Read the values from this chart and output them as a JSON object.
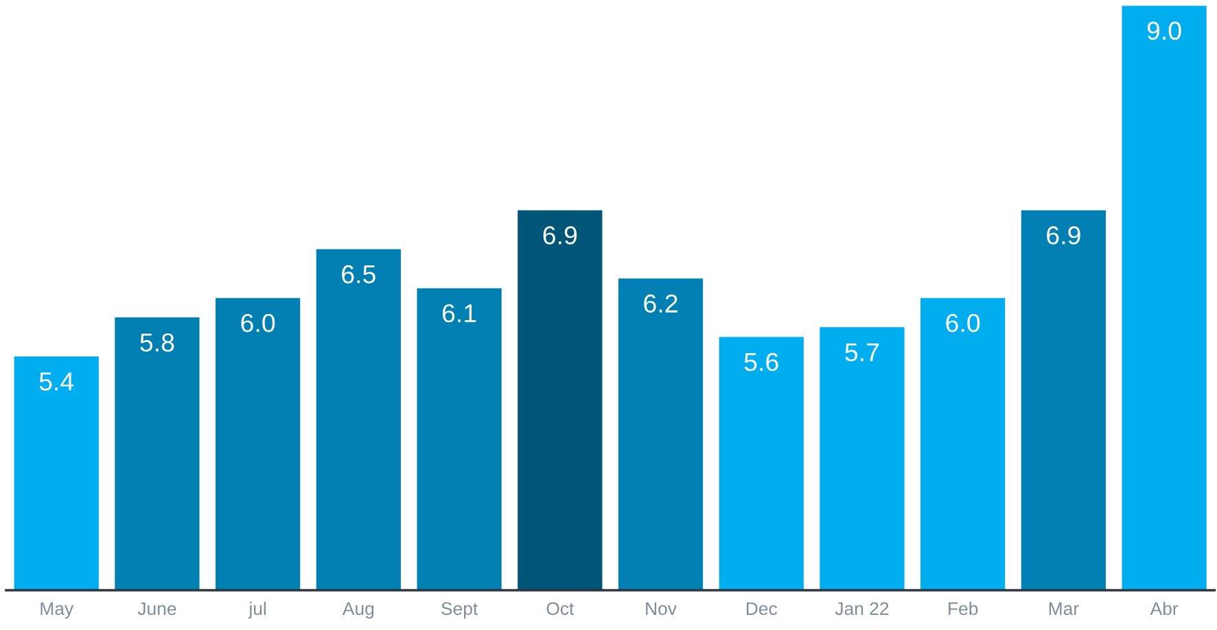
{
  "chart_data": {
    "type": "bar",
    "categories": [
      "May",
      "June",
      "jul",
      "Aug",
      "Sept",
      "Oct",
      "Nov",
      "Dec",
      "Jan 22",
      "Feb",
      "Mar",
      "Abr"
    ],
    "values": [
      5.4,
      5.8,
      6.0,
      6.5,
      6.1,
      6.9,
      6.2,
      5.6,
      5.7,
      6.0,
      6.9,
      9.0
    ],
    "colors": [
      "#00adef",
      "#0080b2",
      "#0080b2",
      "#0080b2",
      "#0080b2",
      "#005677",
      "#0080b2",
      "#00adef",
      "#00adef",
      "#00adef",
      "#0080b2",
      "#00adef"
    ],
    "value_labels": [
      "5.4",
      "5.8",
      "6.0",
      "6.5",
      "6.1",
      "6.9",
      "6.2",
      "5.6",
      "5.7",
      "6.0",
      "6.9",
      "9.0"
    ],
    "ylim": [
      3,
      9
    ],
    "tick_labels": "x",
    "grid": false,
    "legend": false
  }
}
